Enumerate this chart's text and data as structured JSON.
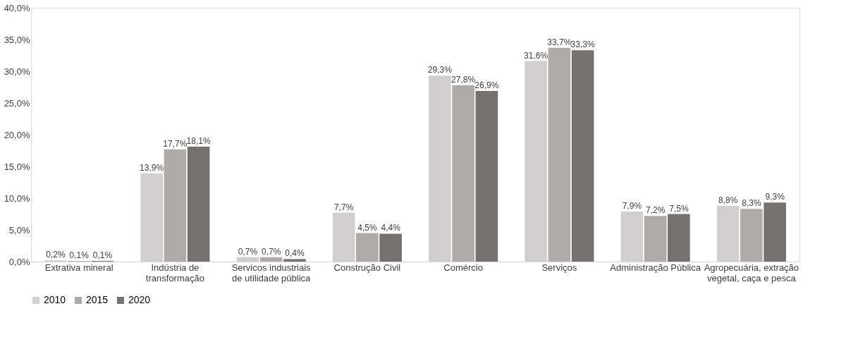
{
  "chart_data": {
    "type": "bar",
    "categories": [
      "Extrativa mineral",
      "Indústria de transformação",
      "Servicos industriais de utilidade pública",
      "Construção Civil",
      "Comércio",
      "Serviços",
      "Administração Pública",
      "Agropecuária, extração vegetal, caça e pesca"
    ],
    "series": [
      {
        "name": "2010",
        "color": "#d0cece",
        "values": [
          0.2,
          13.9,
          0.7,
          7.7,
          29.3,
          31.6,
          7.9,
          8.8
        ],
        "value_labels": [
          "0,2%",
          "13,9%",
          "0,7%",
          "7,7%",
          "29,3%",
          "31,6%",
          "7,9%",
          "8,8%"
        ]
      },
      {
        "name": "2015",
        "color": "#aeaaaa",
        "values": [
          0.1,
          17.7,
          0.7,
          4.5,
          27.8,
          33.7,
          7.2,
          8.3
        ],
        "value_labels": [
          "0,1%",
          "17,7%",
          "0,7%",
          "4,5%",
          "27,8%",
          "33,7%",
          "7,2%",
          "8,3%"
        ]
      },
      {
        "name": "2020",
        "color": "#767171",
        "values": [
          0.1,
          18.1,
          0.4,
          4.4,
          26.9,
          33.3,
          7.5,
          9.3
        ],
        "value_labels": [
          "0,1%",
          "18,1%",
          "0,4%",
          "4,4%",
          "26,9%",
          "33,3%",
          "7,5%",
          "9,3%"
        ]
      }
    ],
    "ylim": [
      0,
      40
    ],
    "yticks": [
      {
        "value": 0,
        "label": "0,0%"
      },
      {
        "value": 5,
        "label": "5,0%"
      },
      {
        "value": 10,
        "label": "10,0%"
      },
      {
        "value": 15,
        "label": "15,0%"
      },
      {
        "value": 20,
        "label": "20,0%"
      },
      {
        "value": 25,
        "label": "25,0%"
      },
      {
        "value": 30,
        "label": "30,0%"
      },
      {
        "value": 35,
        "label": "35,0%"
      },
      {
        "value": 40,
        "label": "40,0%"
      }
    ],
    "grid": false,
    "legend": "bottom"
  }
}
